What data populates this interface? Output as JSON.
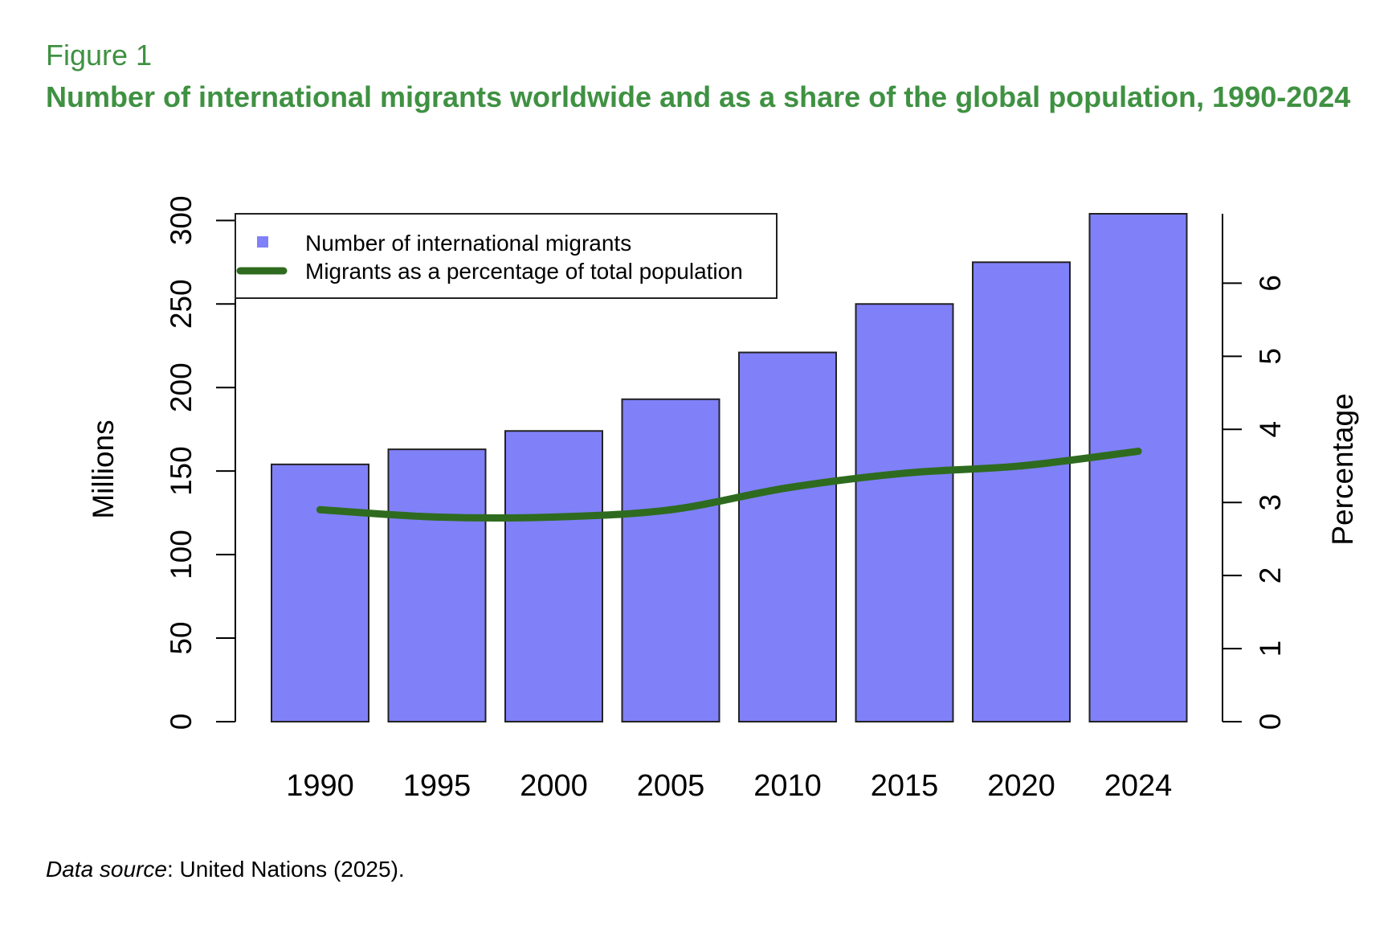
{
  "figure": {
    "label": "Figure 1",
    "title": "Number of international migrants worldwide and as a share of the global population, 1990-2024",
    "source_prefix": "Data source",
    "source_rest": ": United Nations (2025)."
  },
  "chart_data": {
    "type": "bar",
    "categories": [
      "1990",
      "1995",
      "2000",
      "2005",
      "2010",
      "2015",
      "2020",
      "2024"
    ],
    "series": [
      {
        "name": "Number of international migrants",
        "type": "bar",
        "axis": "left",
        "color": "#8080f8",
        "values": [
          154,
          163,
          174,
          193,
          221,
          250,
          275,
          304
        ]
      },
      {
        "name": "Migrants as a percentage of total population",
        "type": "line",
        "axis": "right",
        "color": "#2e6b1f",
        "values": [
          2.9,
          2.8,
          2.8,
          2.9,
          3.2,
          3.4,
          3.5,
          3.7
        ]
      }
    ],
    "ylabel": "Millions",
    "ylabel_right": "Percentage",
    "ylim": [
      0,
      304
    ],
    "yticks": [
      0,
      50,
      100,
      150,
      200,
      250,
      300
    ],
    "ylim_right": [
      0,
      6.95
    ],
    "yticks_right": [
      0,
      1,
      2,
      3,
      4,
      5,
      6
    ],
    "legend": "top-left",
    "grid": false
  }
}
